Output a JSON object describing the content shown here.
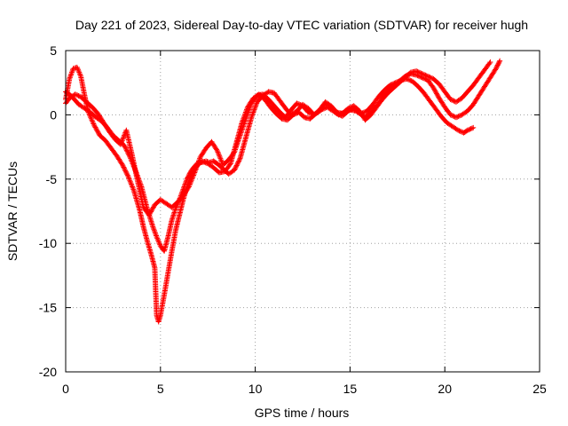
{
  "chart_data": {
    "type": "scatter",
    "title": "Day 221 of 2023, Sidereal Day-to-day VTEC variation (SDTVAR) for receiver hugh",
    "xlabel": "GPS time / hours",
    "ylabel": "SDTVAR / TECUs",
    "xlim": [
      0,
      25
    ],
    "ylim": [
      -20,
      5
    ],
    "xticks": [
      0,
      5,
      10,
      15,
      20,
      25
    ],
    "yticks": [
      -20,
      -15,
      -10,
      -5,
      0,
      5
    ],
    "grid": true,
    "marker": "plus",
    "color": "#ff0000",
    "series": [
      {
        "x": [
          0.0,
          0.2,
          0.4,
          0.6,
          0.8,
          1.0,
          1.2,
          1.5,
          1.8,
          2.1,
          2.4,
          2.7,
          3.0,
          3.3,
          3.6,
          3.9,
          4.1,
          4.3,
          4.5,
          4.7,
          4.8,
          4.9,
          5.0,
          5.2,
          5.4,
          5.6,
          5.8,
          6.0,
          6.2,
          6.4,
          6.6,
          6.9,
          7.2,
          7.5,
          7.8,
          8.1,
          8.4,
          8.7,
          9.0,
          9.3,
          9.6,
          9.9,
          10.2,
          10.5,
          10.8,
          11.1,
          11.4,
          11.7,
          12.0,
          12.3,
          12.6,
          12.9,
          13.2,
          13.5,
          13.8,
          14.1,
          14.4,
          14.7,
          15.0,
          15.3,
          15.6,
          15.9,
          16.2,
          16.5,
          16.8,
          17.1,
          17.4,
          17.7,
          18.0,
          18.3,
          18.6,
          18.9,
          19.2,
          19.5,
          19.8,
          20.1,
          20.4,
          20.7,
          21.0,
          21.2,
          21.5
        ],
        "y": [
          1.2,
          2.8,
          3.6,
          3.7,
          3.0,
          1.5,
          0.2,
          -0.8,
          -1.6,
          -2.0,
          -2.6,
          -3.2,
          -3.9,
          -4.8,
          -5.9,
          -7.4,
          -8.7,
          -9.8,
          -10.8,
          -11.9,
          -15.6,
          -16.1,
          -15.6,
          -14.0,
          -12.3,
          -10.6,
          -9.0,
          -7.8,
          -6.6,
          -5.6,
          -4.8,
          -4.0,
          -3.6,
          -3.8,
          -4.1,
          -4.5,
          -4.4,
          -3.8,
          -2.2,
          -0.6,
          0.6,
          1.3,
          1.6,
          1.2,
          0.6,
          0.1,
          -0.3,
          -0.4,
          0.0,
          0.2,
          -0.2,
          -0.3,
          0.1,
          0.4,
          0.6,
          0.3,
          0.0,
          0.2,
          0.4,
          0.3,
          0.1,
          0.3,
          0.8,
          1.4,
          1.9,
          2.3,
          2.5,
          2.7,
          2.8,
          2.6,
          2.2,
          1.7,
          1.1,
          0.5,
          -0.1,
          -0.6,
          -0.9,
          -1.2,
          -1.4,
          -1.2,
          -1.0
        ]
      },
      {
        "x": [
          0.0,
          0.2,
          0.4,
          0.7,
          1.0,
          1.3,
          1.6,
          1.9,
          2.2,
          2.5,
          2.8,
          3.1,
          3.4,
          3.7,
          4.0,
          4.3,
          4.6,
          4.8,
          5.0,
          5.2,
          5.4,
          5.6,
          5.8,
          6.0,
          6.2,
          6.4,
          6.6,
          6.8,
          7.0,
          7.2,
          7.4,
          7.6,
          7.8,
          8.0,
          8.3,
          8.6,
          8.9,
          9.2,
          9.5,
          9.8,
          10.1,
          10.4,
          10.7,
          11.0,
          11.3,
          11.6,
          11.9,
          12.2,
          12.5,
          12.8,
          13.1,
          13.4,
          13.7,
          14.0,
          14.3,
          14.6,
          14.9,
          15.2,
          15.5,
          15.8,
          16.1,
          16.4,
          16.7,
          17.0,
          17.3,
          17.6,
          17.9,
          18.2,
          18.5,
          18.8,
          19.1,
          19.4,
          19.7,
          20.0,
          20.3,
          20.6,
          20.9,
          21.2,
          21.5,
          21.8,
          22.1,
          22.4,
          22.7,
          22.9
        ],
        "y": [
          1.8,
          1.6,
          1.3,
          0.8,
          0.5,
          0.2,
          -0.2,
          -0.5,
          -1.0,
          -1.6,
          -2.0,
          -2.4,
          -3.3,
          -4.4,
          -5.6,
          -7.3,
          -8.7,
          -9.5,
          -10.2,
          -10.6,
          -9.5,
          -8.2,
          -7.3,
          -6.6,
          -5.8,
          -5.0,
          -4.4,
          -4.0,
          -3.7,
          -3.7,
          -3.6,
          -3.7,
          -3.6,
          -3.8,
          -4.2,
          -4.6,
          -4.3,
          -3.4,
          -1.8,
          -0.2,
          1.0,
          1.5,
          1.8,
          1.7,
          1.1,
          0.5,
          0.0,
          0.3,
          0.8,
          0.5,
          0.0,
          0.3,
          0.9,
          0.6,
          0.1,
          -0.1,
          0.3,
          0.5,
          0.1,
          -0.2,
          0.2,
          0.7,
          1.3,
          1.8,
          2.2,
          2.6,
          3.0,
          3.2,
          3.1,
          2.9,
          2.7,
          2.1,
          1.3,
          0.6,
          0.0,
          -0.2,
          0.0,
          0.3,
          0.8,
          1.5,
          2.2,
          2.9,
          3.6,
          4.2
        ]
      },
      {
        "x": [
          0.0,
          0.2,
          0.5,
          0.8,
          1.1,
          1.4,
          1.7,
          2.0,
          2.3,
          2.6,
          2.9,
          3.2,
          3.5,
          3.8,
          4.1,
          4.4,
          4.7,
          5.0,
          5.3,
          5.6,
          5.9,
          6.2,
          6.5,
          6.8,
          7.1,
          7.4,
          7.7,
          8.0,
          8.3,
          8.6,
          8.9,
          9.2,
          9.5,
          9.8,
          10.1,
          10.4,
          10.7,
          11.0,
          11.3,
          11.6,
          11.9,
          12.2,
          12.5,
          12.8,
          13.1,
          13.4,
          13.7,
          14.0,
          14.3,
          14.6,
          14.9,
          15.2,
          15.5,
          15.8,
          16.1,
          16.4,
          16.7,
          17.0,
          17.3,
          17.6,
          17.9,
          18.2,
          18.5,
          18.8,
          19.1,
          19.4,
          19.7,
          20.0,
          20.3,
          20.6,
          20.9,
          21.2,
          21.5,
          21.8,
          22.1,
          22.4
        ],
        "y": [
          0.9,
          1.3,
          1.6,
          1.4,
          1.0,
          0.6,
          0.1,
          -0.6,
          -1.3,
          -1.9,
          -2.3,
          -1.2,
          -3.1,
          -5.2,
          -7.2,
          -7.8,
          -7.0,
          -6.6,
          -6.9,
          -7.2,
          -6.8,
          -6.3,
          -5.6,
          -4.5,
          -3.3,
          -2.6,
          -2.1,
          -2.8,
          -3.9,
          -3.5,
          -2.9,
          -1.6,
          -0.3,
          0.9,
          1.5,
          1.6,
          1.2,
          0.7,
          0.2,
          -0.2,
          0.4,
          0.9,
          0.7,
          0.2,
          0.0,
          0.4,
          1.0,
          0.7,
          0.2,
          0.1,
          0.5,
          0.7,
          0.3,
          -0.4,
          0.0,
          0.6,
          1.2,
          1.7,
          2.1,
          2.5,
          2.9,
          3.3,
          3.4,
          3.2,
          3.0,
          2.8,
          2.4,
          1.8,
          1.2,
          1.0,
          1.3,
          1.8,
          2.3,
          2.9,
          3.5,
          4.1
        ]
      }
    ]
  }
}
